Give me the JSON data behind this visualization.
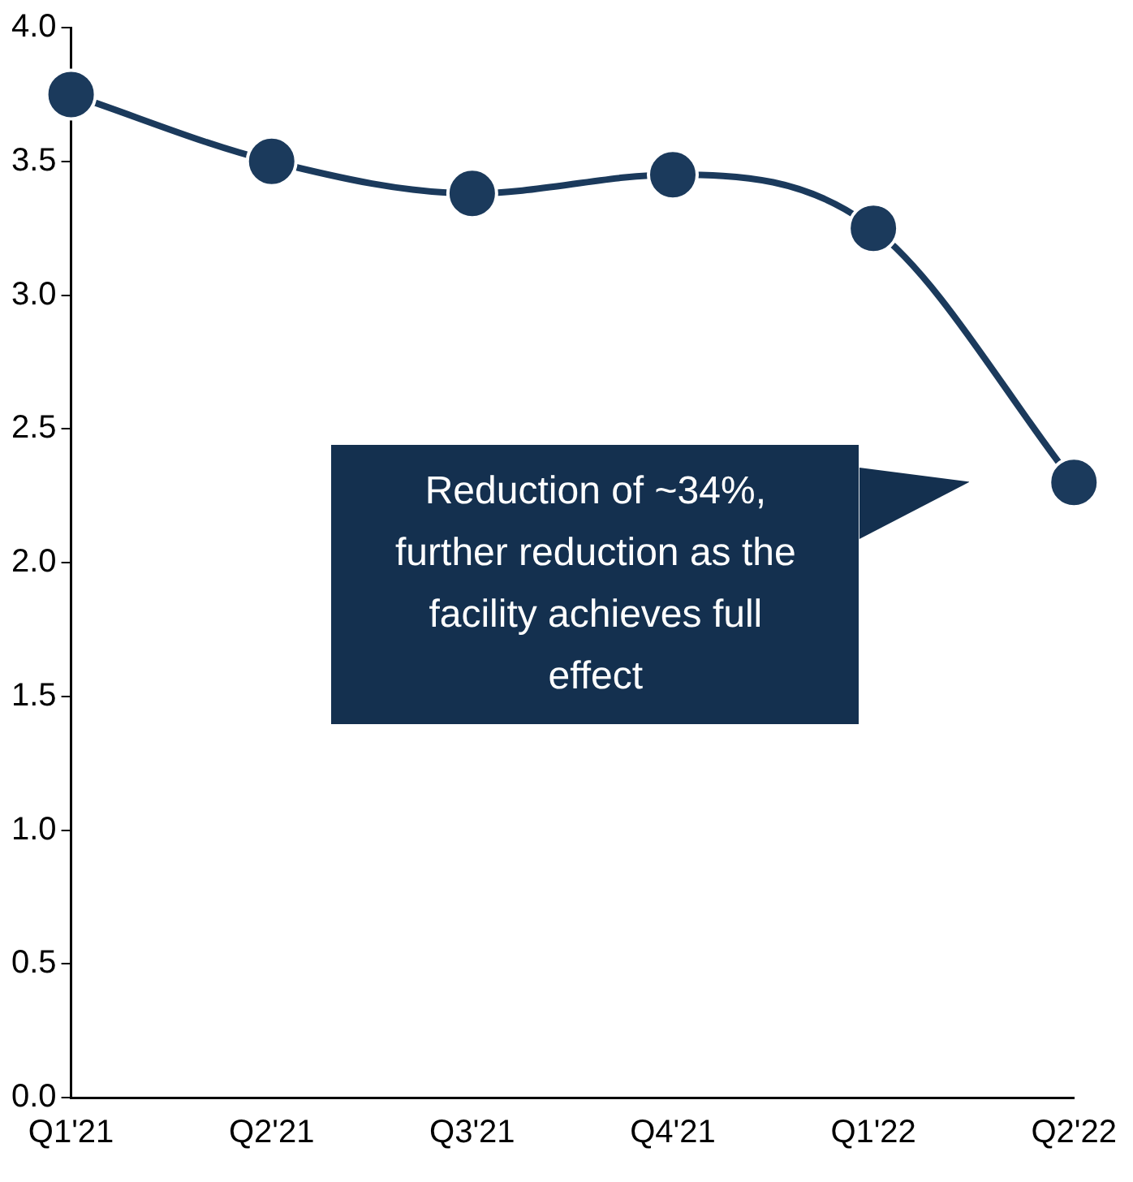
{
  "chart_data": {
    "type": "line",
    "categories": [
      "Q1'21",
      "Q2'21",
      "Q3'21",
      "Q4'21",
      "Q1'22",
      "Q2'22"
    ],
    "series": [
      {
        "color": "#1b3a5c",
        "values": [
          3.75,
          3.5,
          3.38,
          3.45,
          3.25,
          2.3
        ]
      }
    ],
    "ylim": [
      0,
      4
    ],
    "yticks": [
      {
        "value": 0,
        "label": "0.0"
      },
      {
        "value": 0.5,
        "label": "0.5"
      },
      {
        "value": 1,
        "label": "1.0"
      },
      {
        "value": 1.5,
        "label": "1.5"
      },
      {
        "value": 2,
        "label": "2.0"
      },
      {
        "value": 2.5,
        "label": "2.5"
      },
      {
        "value": 3,
        "label": "3.0"
      },
      {
        "value": 3.5,
        "label": "3.5"
      },
      {
        "value": 4,
        "label": "4.0"
      }
    ],
    "grid": false,
    "legend": false,
    "marker": "circle",
    "line_style": "solid",
    "annotations": [
      "Reduction of ~34%, further reduction as the facility achieves full effect"
    ]
  }
}
